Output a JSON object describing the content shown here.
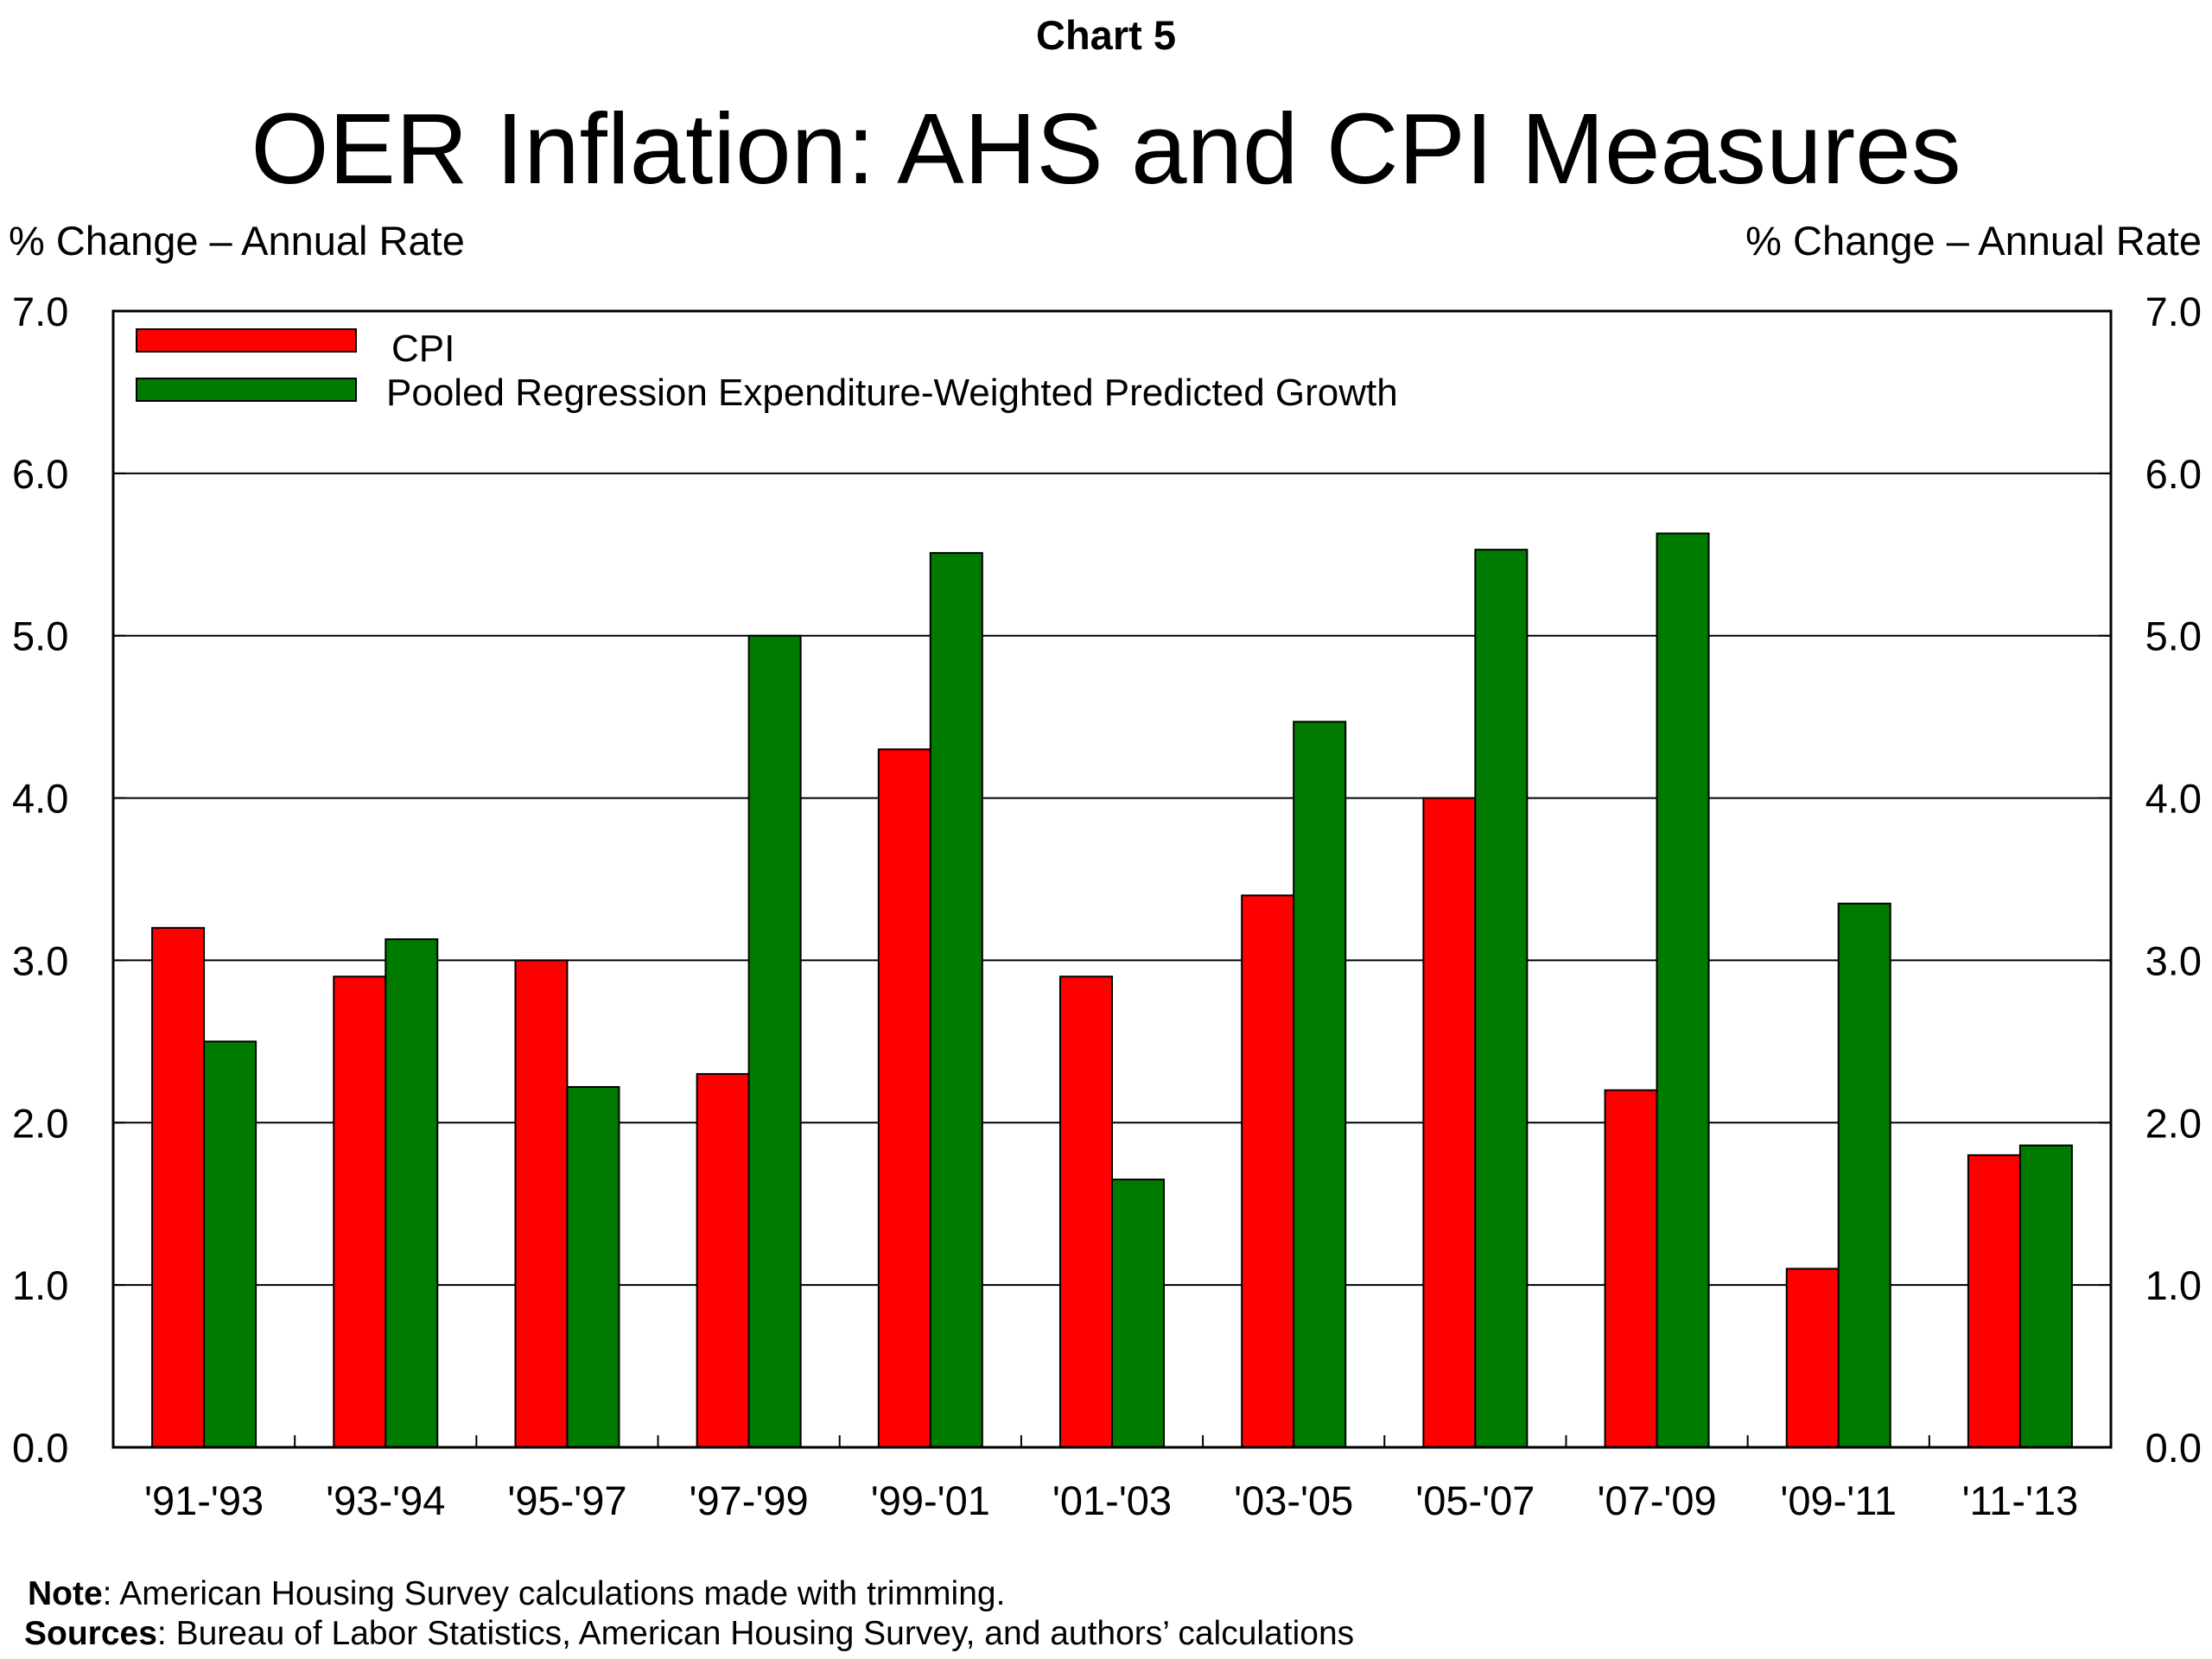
{
  "header": {
    "chart_number": "Chart 5"
  },
  "chart_data": {
    "type": "bar",
    "title": "OER Inflation: AHS and CPI Measures",
    "ylabel_left": "% Change – Annual Rate",
    "ylabel_right": "% Change – Annual Rate",
    "xlabel": "",
    "ylim": [
      0,
      7
    ],
    "yticks": [
      "0.0",
      "1.0",
      "2.0",
      "3.0",
      "4.0",
      "5.0",
      "6.0",
      "7.0"
    ],
    "grid": true,
    "legend_position": "top-left",
    "categories": [
      "'91-'93",
      "'93-'94",
      "'95-'97",
      "'97-'99",
      "'99-'01",
      "'01-'03",
      "'03-'05",
      "'05-'07",
      "'07-'09",
      "'09-'11",
      "'11-'13"
    ],
    "series": [
      {
        "name": "CPI",
        "color": "#ff0000",
        "values": [
          3.2,
          2.9,
          3.0,
          2.3,
          4.3,
          2.9,
          3.4,
          4.0,
          2.2,
          1.1,
          1.8
        ]
      },
      {
        "name": "Pooled Regression Expenditure-Weighted Predicted Growth",
        "color": "#007a00",
        "values": [
          2.5,
          3.13,
          2.22,
          5.0,
          5.51,
          1.65,
          4.47,
          5.53,
          5.63,
          3.35,
          1.86
        ]
      }
    ]
  },
  "footer": {
    "note_label": "Note",
    "note_text": ": American Housing Survey calculations made with trimming.",
    "sources_label": "Sources",
    "sources_text": ": Bureau of Labor Statistics, American Housing Survey, and authors’ calculations"
  }
}
